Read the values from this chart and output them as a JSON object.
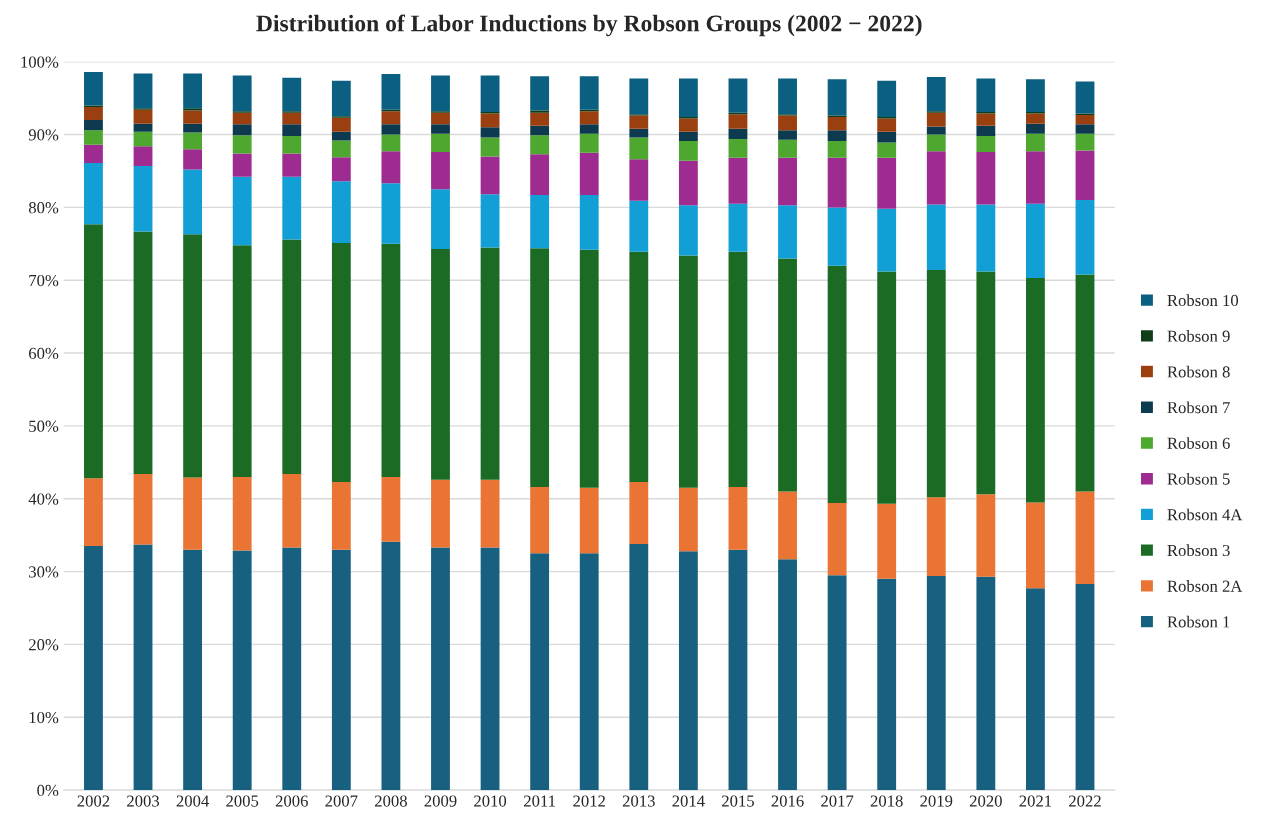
{
  "chart_data": {
    "type": "bar",
    "stacked": true,
    "title": "Distribution of Labor Inductions by Robson Groups (2002 − 2022)",
    "categories": [
      "2002",
      "2003",
      "2004",
      "2005",
      "2006",
      "2007",
      "2008",
      "2009",
      "2010",
      "2011",
      "2012",
      "2013",
      "2014",
      "2015",
      "2016",
      "2017",
      "2018",
      "2019",
      "2020",
      "2021",
      "2022"
    ],
    "series": [
      {
        "name": "Robson 1",
        "color": "#17607f",
        "values": [
          33.5,
          33.7,
          33.0,
          32.9,
          33.3,
          33.0,
          34.1,
          33.3,
          33.3,
          32.5,
          32.5,
          33.8,
          32.8,
          33.0,
          31.7,
          29.5,
          29.0,
          29.4,
          29.3,
          27.7,
          28.3
        ]
      },
      {
        "name": "Robson 2A",
        "color": "#e97433",
        "values": [
          9.3,
          9.7,
          9.9,
          10.1,
          10.1,
          9.3,
          8.9,
          9.3,
          9.3,
          9.1,
          9.0,
          8.5,
          8.7,
          8.6,
          9.3,
          9.9,
          10.3,
          10.8,
          11.3,
          11.8,
          12.7
        ]
      },
      {
        "name": "Robson 3",
        "color": "#1b6b24",
        "values": [
          34.9,
          33.3,
          33.4,
          31.8,
          32.2,
          32.8,
          32.0,
          31.7,
          31.9,
          32.8,
          32.7,
          31.6,
          31.9,
          32.3,
          32.0,
          32.6,
          31.9,
          31.2,
          30.6,
          30.8,
          29.8
        ]
      },
      {
        "name": "Robson 4A",
        "color": "#119fd6",
        "values": [
          8.4,
          9.0,
          8.9,
          9.4,
          8.6,
          8.5,
          8.3,
          8.2,
          7.3,
          7.3,
          7.5,
          7.0,
          6.9,
          6.6,
          7.3,
          8.0,
          8.6,
          9.0,
          9.2,
          10.2,
          10.2
        ]
      },
      {
        "name": "Robson 5",
        "color": "#9e2b8f",
        "values": [
          2.5,
          2.7,
          2.8,
          3.2,
          3.2,
          3.3,
          4.4,
          5.1,
          5.2,
          5.6,
          5.8,
          5.7,
          6.1,
          6.3,
          6.5,
          6.8,
          7.0,
          7.3,
          7.2,
          7.2,
          6.8
        ]
      },
      {
        "name": "Robson 6",
        "color": "#4ea72e",
        "values": [
          2.0,
          2.0,
          2.3,
          2.5,
          2.4,
          2.3,
          2.3,
          2.5,
          2.6,
          2.6,
          2.6,
          3.0,
          2.7,
          2.6,
          2.5,
          2.3,
          2.1,
          2.3,
          2.2,
          2.4,
          2.3
        ]
      },
      {
        "name": "Robson 7",
        "color": "#0e3a50",
        "values": [
          1.4,
          1.1,
          1.2,
          1.5,
          1.6,
          1.2,
          1.4,
          1.3,
          1.4,
          1.3,
          1.3,
          1.2,
          1.3,
          1.4,
          1.3,
          1.5,
          1.5,
          1.1,
          1.4,
          1.4,
          1.3
        ]
      },
      {
        "name": "Robson 8",
        "color": "#9a3f10",
        "values": [
          1.8,
          1.9,
          1.8,
          1.6,
          1.6,
          1.9,
          1.8,
          1.6,
          1.9,
          1.8,
          1.8,
          1.8,
          1.8,
          2.0,
          2.0,
          1.8,
          1.8,
          1.9,
          1.7,
          1.4,
          1.3
        ]
      },
      {
        "name": "Robson 9",
        "color": "#0f3d1a",
        "values": [
          0.2,
          0.2,
          0.3,
          0.2,
          0.2,
          0.2,
          0.2,
          0.2,
          0.2,
          0.3,
          0.2,
          0.2,
          0.2,
          0.2,
          0.2,
          0.2,
          0.2,
          0.2,
          0.2,
          0.2,
          0.2
        ]
      },
      {
        "name": "Robson 10",
        "color": "#0b5f80",
        "values": [
          4.6,
          4.8,
          4.8,
          4.9,
          4.6,
          4.9,
          4.9,
          4.9,
          5.0,
          4.7,
          4.6,
          4.9,
          5.3,
          4.7,
          4.9,
          5.0,
          5.0,
          4.7,
          4.6,
          4.5,
          4.4
        ]
      }
    ],
    "ylim": [
      0,
      100
    ],
    "yticks": [
      {
        "value": 0,
        "label": "0%"
      },
      {
        "value": 10,
        "label": "10%"
      },
      {
        "value": 20,
        "label": "20%"
      },
      {
        "value": 30,
        "label": "30%"
      },
      {
        "value": 40,
        "label": "40%"
      },
      {
        "value": 50,
        "label": "50%"
      },
      {
        "value": 60,
        "label": "60%"
      },
      {
        "value": 70,
        "label": "70%"
      },
      {
        "value": 80,
        "label": "80%"
      },
      {
        "value": 90,
        "label": "90%"
      },
      {
        "value": 100,
        "label": "100%"
      }
    ],
    "grid": "y",
    "legend": "right"
  }
}
